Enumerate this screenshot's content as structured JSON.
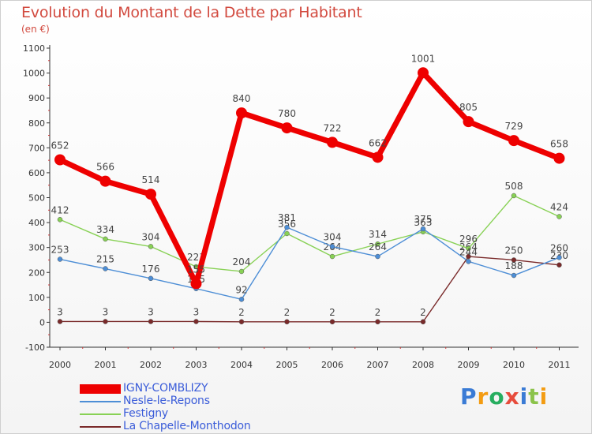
{
  "header": {
    "title": "Evolution du Montant de la Dette par Habitant",
    "subtitle": "(en €)"
  },
  "brand": {
    "name": "Proxiti"
  },
  "chart_data": {
    "type": "line",
    "title": "Evolution du Montant de la Dette par Habitant",
    "subtitle": "(en €)",
    "xlabel": "",
    "ylabel": "",
    "x": [
      "2000",
      "2001",
      "2002",
      "2003",
      "2004",
      "2005",
      "2006",
      "2007",
      "2008",
      "2009",
      "2010",
      "2011"
    ],
    "ylim": [
      -100,
      1100
    ],
    "yticks": [
      -100,
      0,
      100,
      200,
      300,
      400,
      500,
      600,
      700,
      800,
      900,
      1000,
      1100
    ],
    "grid": false,
    "legend": "bottom-left",
    "series": [
      {
        "name": "IGNY-COMBLIZY",
        "color": "#ee0000",
        "values": [
          652,
          566,
          514,
          155,
          840,
          780,
          722,
          662,
          1001,
          805,
          729,
          658
        ]
      },
      {
        "name": "Nesle-le-Repons",
        "color": "#4d8ed6",
        "values": [
          253,
          215,
          176,
          135,
          92,
          381,
          304,
          264,
          375,
          244,
          188,
          260
        ]
      },
      {
        "name": "Festigny",
        "color": "#88d155",
        "values": [
          412,
          334,
          304,
          223,
          204,
          356,
          264,
          314,
          363,
          296,
          508,
          424
        ]
      },
      {
        "name": "La Chapelle-Monthodon",
        "color": "#7a2a2a",
        "values": [
          3,
          3,
          3,
          3,
          2,
          2,
          2,
          2,
          2,
          264,
          250,
          230
        ]
      }
    ]
  }
}
